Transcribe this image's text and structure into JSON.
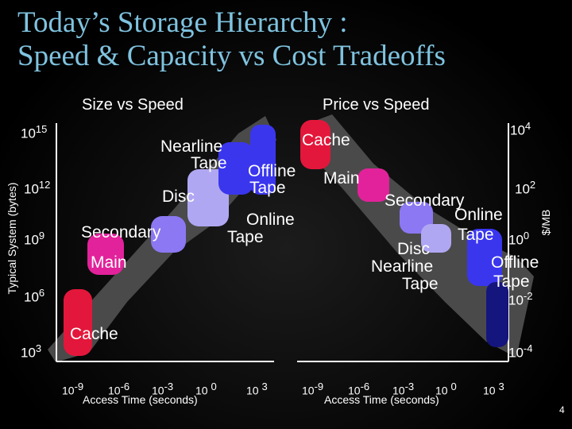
{
  "slide": {
    "title_line1": "Today’s Storage Hierarchy :",
    "title_line2": "Speed & Capacity  vs Cost Tradeoffs",
    "page_number": "4",
    "colors": {
      "title": "#7fc3df",
      "red": "#e3173b",
      "magenta": "#e2229a",
      "violet": "#8b78f2",
      "lavender": "#b0a7f3",
      "blue": "#3a36ee",
      "navy": "#15157e",
      "band": "#4a4a4a"
    }
  },
  "left": {
    "heading": "Size vs Speed",
    "ylabel": "Typical System (bytes)",
    "xlabel": "Access  Time (seconds)",
    "y_ticks": [
      {
        "base": "10",
        "exp": "15"
      },
      {
        "base": "10",
        "exp": "12"
      },
      {
        "base": "10",
        "exp": "9"
      },
      {
        "base": "10",
        "exp": "6"
      },
      {
        "base": "10",
        "exp": "3"
      }
    ],
    "x_ticks": [
      {
        "base": "10",
        "exp": "-9"
      },
      {
        "base": "10",
        "exp": "-6"
      },
      {
        "base": "10",
        "exp": "-3"
      },
      {
        "base": "10 ",
        "exp": "0"
      },
      {
        "base": "10 ",
        "exp": "3"
      }
    ],
    "labels": {
      "cache": "Cache",
      "main": "Main",
      "secondary": "Secondary",
      "disc": "Disc",
      "nearline_1": "Nearline",
      "nearline_2": "Tape",
      "offline_1": "Offline",
      "offline_2": "Tape",
      "online_1": "Online",
      "online_2": "Tape"
    }
  },
  "right": {
    "heading": "Price vs Speed",
    "ylabel": "$/MB",
    "xlabel": "Access  Time (seconds)",
    "y_ticks": [
      {
        "base": "10",
        "exp": "4"
      },
      {
        "base": "10",
        "exp": "2"
      },
      {
        "base": "10",
        "exp": "0"
      },
      {
        "base": "10",
        "exp": "-2"
      },
      {
        "base": "10",
        "exp": "-4"
      }
    ],
    "x_ticks": [
      {
        "base": "10",
        "exp": "-9"
      },
      {
        "base": "10",
        "exp": "-6"
      },
      {
        "base": "10",
        "exp": "-3"
      },
      {
        "base": "10 ",
        "exp": "0"
      },
      {
        "base": "10 ",
        "exp": "3"
      }
    ],
    "labels": {
      "cache": "Cache",
      "main": "Main",
      "secondary": "Secondary",
      "disc": "Disc",
      "nearline_1": "Nearline",
      "nearline_2": "Tape",
      "online_1": "Online",
      "online_2": "Tape",
      "offline_1": "Offline",
      "offline_2": "Tape"
    }
  }
}
